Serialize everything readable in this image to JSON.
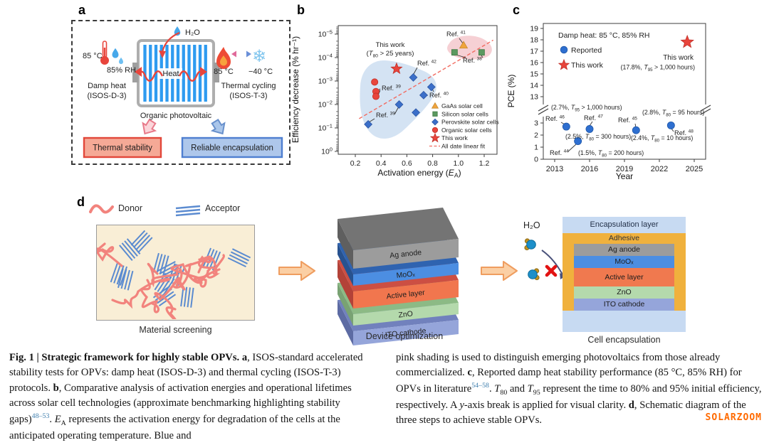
{
  "figure": {
    "watermark": "SOLARZOOM",
    "watermark_color": "#ff6a00",
    "caption_left": [
      {
        "t": "Fig. 1 | Strategic framework for highly stable OPVs. ",
        "b": 1
      },
      {
        "t": "a",
        "b": 1
      },
      {
        "t": ", ISOS-standard accelerated stability tests for OPVs: damp heat (ISOS-D-3) and thermal cycling (ISOS-T-3) protocols. "
      },
      {
        "t": "b",
        "b": 1
      },
      {
        "t": ", Comparative analysis of activation energies and operational lifetimes across solar cell technologies (approximate benchmarking highlighting stability gaps)"
      },
      {
        "t": "48–53",
        "sup": 1
      },
      {
        "t": ". "
      },
      {
        "t": "E",
        "i": 1
      },
      {
        "t": "A",
        "sb": 1
      },
      {
        "t": " represents the activation energy for degradation of the cells at the anticipated operating temperature. Blue and"
      }
    ],
    "caption_right": [
      {
        "t": "pink shading is used to distinguish emerging photovoltaics from those already commercialized. "
      },
      {
        "t": "c",
        "b": 1
      },
      {
        "t": ", Reported damp heat stability performance (85 °C, 85% RH) for OPVs in literature"
      },
      {
        "t": "54–58",
        "sup": 1
      },
      {
        "t": ". "
      },
      {
        "t": "T",
        "i": 1
      },
      {
        "t": "80",
        "sb": 1
      },
      {
        "t": " and "
      },
      {
        "t": "T",
        "i": 1
      },
      {
        "t": "95",
        "sb": 1
      },
      {
        "t": " represent the time to 80% and 95% initial efficiency, respectively. A "
      },
      {
        "t": "y",
        "i": 1
      },
      {
        "t": "-axis break is applied for visual clarity. "
      },
      {
        "t": "d",
        "b": 1
      },
      {
        "t": ", Schematic diagram of the three steps to achieve stable OPVs."
      }
    ]
  },
  "panel_a": {
    "label": "a",
    "damp_heat": {
      "temp": "85 °C",
      "rh": "85% RH",
      "name": "Damp heat",
      "protocol": "(ISOS-D-3)"
    },
    "thermal_cycling": {
      "hot": "85 °C",
      "cold": "−40 °C",
      "name": "Thermal cycling",
      "protocol": "(ISOS-T-3)"
    },
    "h2o": "H₂O",
    "heat": "Heat",
    "device": "Organic photovoltaic",
    "outcome_left": "Thermal stability",
    "outcome_right": "Reliable encapsulation",
    "colors": {
      "thermal_box_bg": "#f5a996",
      "thermal_box_border": "#e2473a",
      "encap_box_bg": "#aec7eb",
      "encap_box_border": "#4f7fd0"
    }
  },
  "panel_b": {
    "label": "b"
  },
  "panel_c": {
    "label": "c"
  },
  "panel_d": {
    "label": "d",
    "donor": "Donor",
    "acceptor": "Acceptor",
    "h2o": "H₂O",
    "step_labels": [
      "Material screening",
      "Device optimization",
      "Cell encapsulation"
    ],
    "stack_layers": [
      {
        "name": "Ag anode",
        "front": "#9c9c9c",
        "top": "#747474",
        "side": "#5f5f5f"
      },
      {
        "name": "MoOₓ",
        "front": "#4c8ee2",
        "top": "#2f63b0",
        "side": "#27528f"
      },
      {
        "name": "Active layer",
        "front": "#f1764e",
        "top": "#cc4f43",
        "side": "#b34238"
      },
      {
        "name": "ZnO",
        "front": "#b4d9ac",
        "top": "#8cba85",
        "side": "#79a273"
      },
      {
        "name": "ITO cathode",
        "front": "#95a5da",
        "top": "#7181bd",
        "side": "#5d6ba3"
      }
    ],
    "encapsulation": {
      "outer": "Encapsulation layer",
      "adhesive": "Adhesive",
      "outer_color": "#c7daf2",
      "adhesive_color": "#f0b13d",
      "layers": [
        {
          "name": "Ag anode",
          "color": "#9c9c9c"
        },
        {
          "name": "MoOₓ",
          "color": "#4c8ee2"
        },
        {
          "name": "Active layer",
          "color": "#f0794f"
        },
        {
          "name": "ZnO",
          "color": "#b4d9ac"
        },
        {
          "name": "ITO cathode",
          "color": "#95a5da"
        }
      ]
    }
  },
  "chart_data": [
    {
      "id": "b",
      "type": "scatter",
      "xlabel": {
        "pre": "Activation energy (",
        "var": "E",
        "sub": "A",
        "post": ")"
      },
      "ylabel": "Efficiency decrease (% hr⁻¹)",
      "x_ticks": [
        0.2,
        0.4,
        0.6,
        0.8,
        1.0,
        1.2
      ],
      "x_range": [
        0.07,
        1.3
      ],
      "y_tick_exponents": [
        -5,
        -4,
        -3,
        -2,
        -1,
        0
      ],
      "y_axis_inverted_log": true,
      "series": [
        {
          "name": "GaAs solar cell",
          "marker": "triangle",
          "color": "#f0a43c",
          "edge": "#c98a2e",
          "points": [
            [
              1.04,
              3e-05
            ]
          ]
        },
        {
          "name": "Silicon solar cells",
          "marker": "square",
          "color": "#5b9960",
          "edge": "#3f7a45",
          "points": [
            [
              0.97,
              6e-05
            ],
            [
              1.18,
              6e-05
            ]
          ]
        },
        {
          "name": "Perovskite solar cells",
          "marker": "diamond",
          "color": "#3b6fc9",
          "edge": "#2b55a3",
          "points": [
            [
              0.65,
              0.0007
            ],
            [
              0.79,
              0.0018
            ],
            [
              0.73,
              0.004
            ],
            [
              0.54,
              0.01
            ],
            [
              0.67,
              0.022
            ],
            [
              0.3,
              0.07
            ]
          ]
        },
        {
          "name": "Organic solar cells",
          "marker": "circle",
          "color": "#e8453c",
          "edge": "#c02f27",
          "points": [
            [
              0.35,
              0.0011
            ],
            [
              0.36,
              0.0028
            ],
            [
              0.36,
              0.0045
            ]
          ]
        },
        {
          "name": "This work",
          "marker": "star",
          "color": "#e8453c",
          "edge": "#c02f27",
          "points": [
            [
              0.52,
              0.0003
            ]
          ]
        }
      ],
      "fit_line": {
        "label": "All date linear fit",
        "color": "#f26b60",
        "from": [
          0.23,
          0.04
        ],
        "to": [
          1.27,
          1.8e-05
        ]
      },
      "highlight": {
        "this_work_note": {
          "line1": "This work",
          "line2_pre": "(",
          "line2_var": "T",
          "line2_sub": "80",
          "line2_post": " > 25 years)"
        }
      },
      "ref_labels": [
        {
          "label": "Ref.",
          "num": "41"
        },
        {
          "label": "Ref.",
          "num": "38"
        },
        {
          "label": "Ref.",
          "num": "42"
        },
        {
          "label": "Ref.",
          "num": "39"
        },
        {
          "label": "Ref.",
          "num": "40"
        },
        {
          "label": "Ref.",
          "num": "39"
        }
      ],
      "shaded_regions": [
        {
          "name": "emerging-photovoltaics",
          "color": "#c9dcf0",
          "opacity": 0.8
        },
        {
          "name": "commercialized",
          "color": "#f5c8cc",
          "opacity": 0.85
        }
      ]
    },
    {
      "id": "c",
      "type": "scatter",
      "xlabel": "Year",
      "ylabel": "PCE (%)",
      "x_ticks": [
        2013,
        2016,
        2019,
        2022,
        2025
      ],
      "y_ticks_upper": [
        13,
        14,
        15,
        16,
        17,
        18,
        19
      ],
      "y_ticks_lower": [
        0,
        1,
        2,
        3
      ],
      "y_axis_break": true,
      "condition": "Damp heat: 85 °C, 85% RH",
      "legend": [
        {
          "name": "Reported",
          "marker": "circle",
          "color": "#2e6fd0",
          "edge": "#1f57a8"
        },
        {
          "name": "This work",
          "marker": "star",
          "color": "#e8453c",
          "edge": "#c02f27"
        }
      ],
      "reported": [
        {
          "year": 2014,
          "pce": 2.7,
          "ref": "46",
          "note": {
            "pre": "(2.7%, ",
            "var": "T",
            "sub": "95",
            "post": " > 1,000 hours)"
          }
        },
        {
          "year": 2015,
          "pce": 1.5,
          "ref": "44",
          "note": {
            "pre": "(1.5%, ",
            "var": "T",
            "sub": "80",
            "post": " = 200 hours)"
          }
        },
        {
          "year": 2016,
          "pce": 2.5,
          "ref": "47",
          "note": {
            "pre": "(2.5%, ",
            "var": "T",
            "sub": "80",
            "post": " = 300 hours)"
          }
        },
        {
          "year": 2020,
          "pce": 2.4,
          "ref": "45",
          "note": {
            "pre": "(2.4%, ",
            "var": "T",
            "sub": "80",
            "post": " = 10 hours)"
          }
        },
        {
          "year": 2023,
          "pce": 2.8,
          "ref": "48",
          "note": {
            "pre": "(2.8%, ",
            "var": "T",
            "sub": "80",
            "post": " = 95 hours)"
          }
        }
      ],
      "this_work": {
        "year": 2024.4,
        "pce": 17.8,
        "label": "This work",
        "note": {
          "pre": "(17.8%, ",
          "var": "T",
          "sub": "95",
          "post": " > 1,000 hours)"
        }
      }
    }
  ]
}
